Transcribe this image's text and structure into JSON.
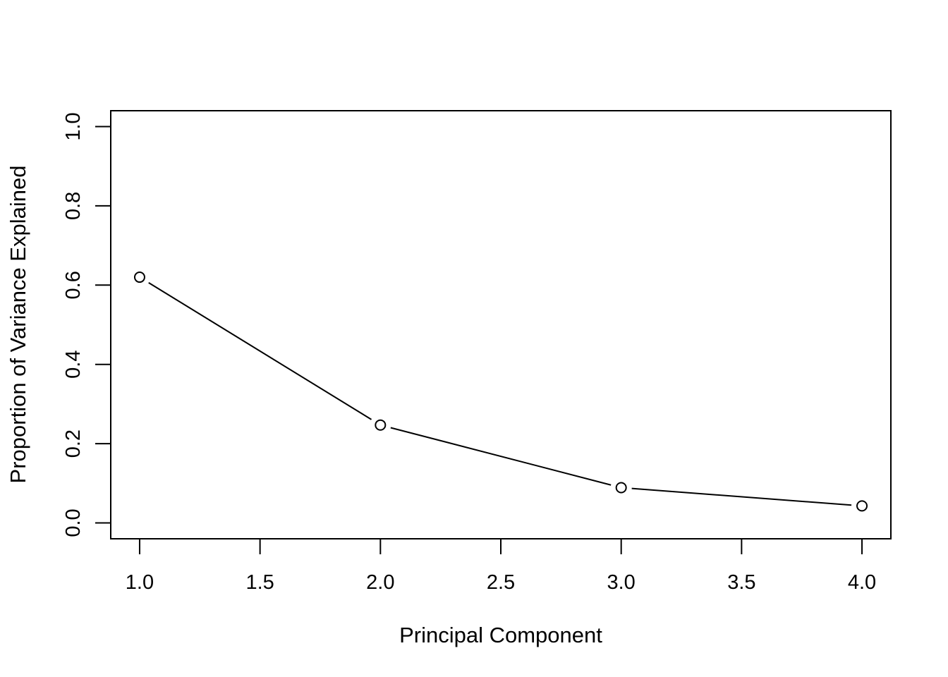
{
  "chart_data": {
    "type": "line",
    "title": "",
    "xlabel": "Principal Component",
    "ylabel": "Proportion of Variance Explained",
    "xlim": [
      0.88,
      4.12
    ],
    "ylim": [
      -0.04,
      1.04
    ],
    "x_ticks": [
      1.0,
      1.5,
      2.0,
      2.5,
      3.0,
      3.5,
      4.0
    ],
    "x_tick_labels": [
      "1.0",
      "1.5",
      "2.0",
      "2.5",
      "3.0",
      "3.5",
      "4.0"
    ],
    "y_ticks": [
      0.0,
      0.2,
      0.4,
      0.6,
      0.8,
      1.0
    ],
    "y_tick_labels": [
      "0.0",
      "0.2",
      "0.4",
      "0.6",
      "0.8",
      "1.0"
    ],
    "grid": false,
    "marker": "open-circle",
    "x": [
      1,
      2,
      3,
      4
    ],
    "series": [
      {
        "values": [
          0.62,
          0.247,
          0.089,
          0.043
        ]
      }
    ]
  }
}
